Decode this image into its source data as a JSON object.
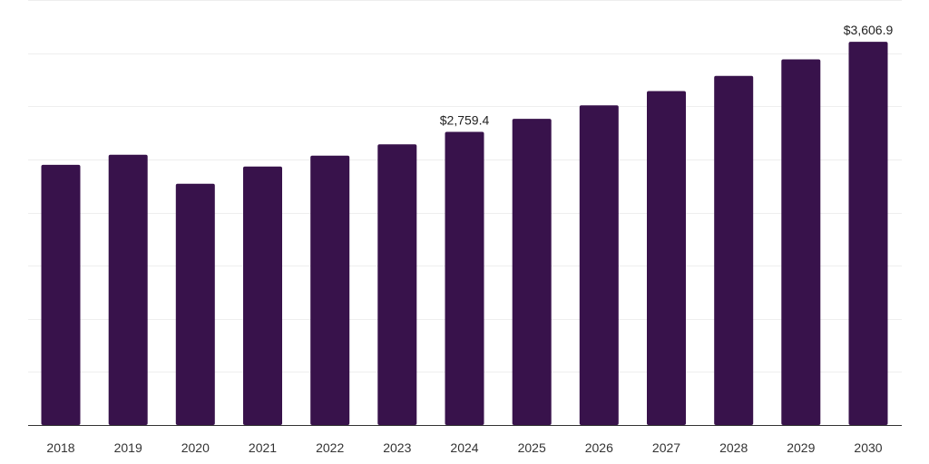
{
  "chart_data": {
    "type": "bar",
    "categories": [
      "2018",
      "2019",
      "2020",
      "2021",
      "2022",
      "2023",
      "2024",
      "2025",
      "2026",
      "2027",
      "2028",
      "2029",
      "2030"
    ],
    "values": [
      2449,
      2543,
      2271,
      2432,
      2535,
      2641,
      2759.4,
      2882,
      3008,
      3143,
      3286,
      3441,
      3606.9
    ],
    "data_labels": [
      {
        "category": "2024",
        "text": "$2,759.4"
      },
      {
        "category": "2030",
        "text": "$3,606.9"
      }
    ],
    "ylim": [
      0,
      4000
    ],
    "grid_step": 500,
    "grid": true,
    "bar_color": "#38124b",
    "title": "",
    "xlabel": "",
    "ylabel": ""
  }
}
